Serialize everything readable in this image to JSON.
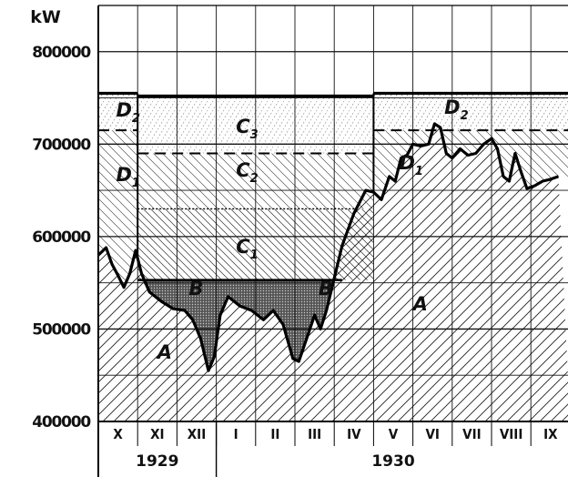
{
  "chart_data": {
    "type": "area",
    "unit_label": "kW",
    "y_ticks": [
      {
        "value": 400000,
        "label": "400000"
      },
      {
        "value": 500000,
        "label": "500000"
      },
      {
        "value": 600000,
        "label": "600000"
      },
      {
        "value": 700000,
        "label": "700000"
      },
      {
        "value": 800000,
        "label": "800000"
      }
    ],
    "ylim": [
      400000,
      850000
    ],
    "months": [
      "X",
      "XI",
      "XII",
      "I",
      "II",
      "III",
      "IV",
      "V",
      "VI",
      "VII",
      "VIII",
      "IX"
    ],
    "years": [
      {
        "label": "1929",
        "from_month": 0,
        "to_month": 2
      },
      {
        "label": "1930",
        "from_month": 3,
        "to_month": 11
      }
    ],
    "grid": true,
    "levels": {
      "total_capacity": 755000,
      "winter_D2_floor": 715000,
      "C3_C2_boundary": 690000,
      "C2_C1_boundary": 630000,
      "C1_floor": 553000,
      "summer_C_floor": 715000
    },
    "curve_A": [
      [
        0.0,
        580000
      ],
      [
        0.2,
        588000
      ],
      [
        0.35,
        570000
      ],
      [
        0.5,
        558000
      ],
      [
        0.65,
        545000
      ],
      [
        0.8,
        560000
      ],
      [
        0.95,
        585000
      ],
      [
        1.1,
        560000
      ],
      [
        1.3,
        540000
      ],
      [
        1.6,
        530000
      ],
      [
        1.9,
        522000
      ],
      [
        2.2,
        520000
      ],
      [
        2.4,
        510000
      ],
      [
        2.6,
        490000
      ],
      [
        2.8,
        455000
      ],
      [
        2.95,
        470000
      ],
      [
        3.1,
        515000
      ],
      [
        3.3,
        535000
      ],
      [
        3.6,
        525000
      ],
      [
        3.9,
        520000
      ],
      [
        4.2,
        510000
      ],
      [
        4.45,
        520000
      ],
      [
        4.7,
        505000
      ],
      [
        4.95,
        468000
      ],
      [
        5.1,
        465000
      ],
      [
        5.3,
        490000
      ],
      [
        5.5,
        515000
      ],
      [
        5.65,
        500000
      ],
      [
        5.8,
        520000
      ],
      [
        6.0,
        555000
      ],
      [
        6.2,
        590000
      ],
      [
        6.5,
        625000
      ],
      [
        6.8,
        650000
      ],
      [
        7.0,
        648000
      ],
      [
        7.2,
        640000
      ],
      [
        7.4,
        665000
      ],
      [
        7.55,
        660000
      ],
      [
        7.7,
        685000
      ],
      [
        7.85,
        688000
      ],
      [
        8.0,
        700000
      ],
      [
        8.2,
        698000
      ],
      [
        8.4,
        700000
      ],
      [
        8.55,
        722000
      ],
      [
        8.7,
        718000
      ],
      [
        8.85,
        690000
      ],
      [
        9.0,
        685000
      ],
      [
        9.2,
        695000
      ],
      [
        9.4,
        688000
      ],
      [
        9.6,
        690000
      ],
      [
        9.8,
        700000
      ],
      [
        10.0,
        706000
      ],
      [
        10.15,
        695000
      ],
      [
        10.3,
        665000
      ],
      [
        10.45,
        660000
      ],
      [
        10.6,
        690000
      ],
      [
        10.75,
        670000
      ],
      [
        10.9,
        652000
      ],
      [
        11.1,
        655000
      ],
      [
        11.3,
        660000
      ],
      [
        11.5,
        662000
      ],
      [
        11.7,
        665000
      ]
    ],
    "zone_labels": [
      {
        "text": "A",
        "month": 1.5,
        "value": 468000
      },
      {
        "text": "A",
        "month": 8.0,
        "value": 520000
      },
      {
        "text": "B",
        "month": 2.3,
        "value": 537000
      },
      {
        "text": "B",
        "month": 5.6,
        "value": 537000
      },
      {
        "text": "C",
        "sub": "1",
        "month": 3.5,
        "value": 582000
      },
      {
        "text": "C",
        "sub": "2",
        "month": 3.5,
        "value": 665000
      },
      {
        "text": "C",
        "sub": "3",
        "month": 3.5,
        "value": 712000
      },
      {
        "text": "D",
        "sub": "1",
        "month": 0.45,
        "value": 660000
      },
      {
        "text": "D",
        "sub": "2",
        "month": 0.45,
        "value": 730000
      },
      {
        "text": "D",
        "sub": "1",
        "month": 7.65,
        "value": 673000
      },
      {
        "text": "D",
        "sub": "2",
        "month": 8.8,
        "value": 733000
      }
    ]
  }
}
